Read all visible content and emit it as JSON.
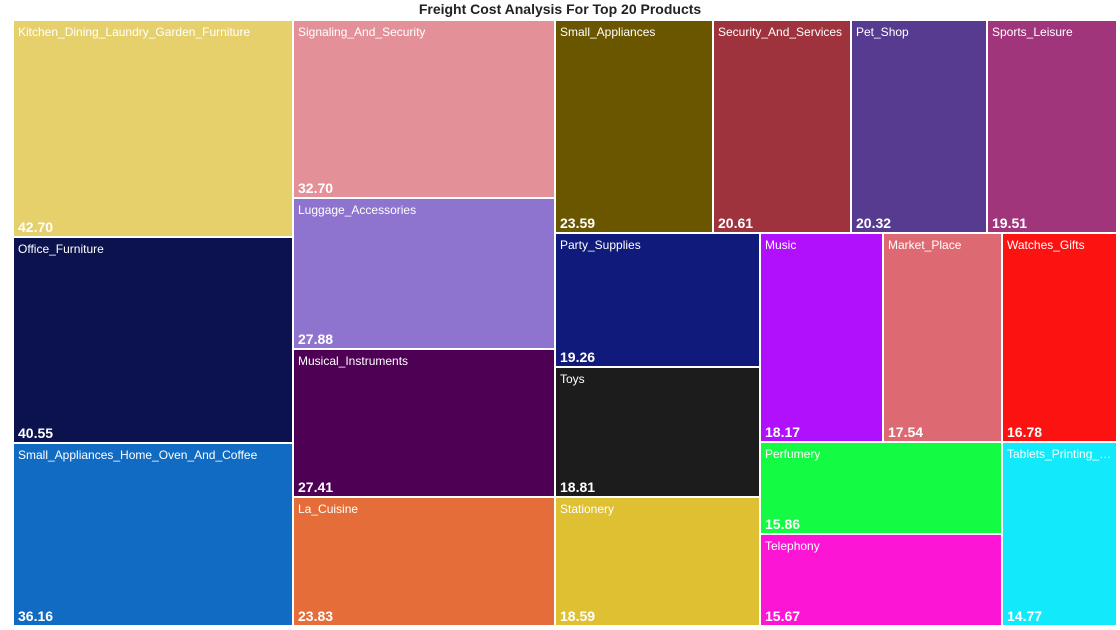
{
  "chart_data": {
    "type": "treemap",
    "title": "Freight Cost Analysis For Top 20 Products",
    "items": [
      {
        "name": "Kitchen_Dining_Laundry_Garden_Furniture",
        "value": "42.70",
        "color": "#e6d06b"
      },
      {
        "name": "Office_Furniture",
        "value": "40.55",
        "color": "#0b124d"
      },
      {
        "name": "Small_Appliances_Home_Oven_And_Coffee",
        "value": "36.16",
        "color": "#126bc3"
      },
      {
        "name": "Signaling_And_Security",
        "value": "32.70",
        "color": "#e49098"
      },
      {
        "name": "Luggage_Accessories",
        "value": "27.88",
        "color": "#8f74cf"
      },
      {
        "name": "Musical_Instruments",
        "value": "27.41",
        "color": "#4e0054"
      },
      {
        "name": "La_Cuisine",
        "value": "23.83",
        "color": "#e46d39"
      },
      {
        "name": "Small_Appliances",
        "value": "23.59",
        "color": "#6b5600"
      },
      {
        "name": "Security_And_Services",
        "value": "20.61",
        "color": "#9e323d"
      },
      {
        "name": "Pet_Shop",
        "value": "20.32",
        "color": "#573b91"
      },
      {
        "name": "Sports_Leisure",
        "value": "19.51",
        "color": "#a0357c"
      },
      {
        "name": "Party_Supplies",
        "value": "19.26",
        "color": "#101a7a"
      },
      {
        "name": "Toys",
        "value": "18.81",
        "color": "#1c1c1c"
      },
      {
        "name": "Stationery",
        "value": "18.59",
        "color": "#dfc033"
      },
      {
        "name": "Music",
        "value": "18.17",
        "color": "#b010fb"
      },
      {
        "name": "Market_Place",
        "value": "17.54",
        "color": "#dd6a72"
      },
      {
        "name": "Watches_Gifts",
        "value": "16.78",
        "color": "#fd1212"
      },
      {
        "name": "Perfumery",
        "value": "15.86",
        "color": "#13fb42"
      },
      {
        "name": "Telephony",
        "value": "15.67",
        "color": "#fd15d6"
      },
      {
        "name": "Tablets_Printing_I...",
        "value": "14.77",
        "color": "#12eafb"
      }
    ]
  }
}
